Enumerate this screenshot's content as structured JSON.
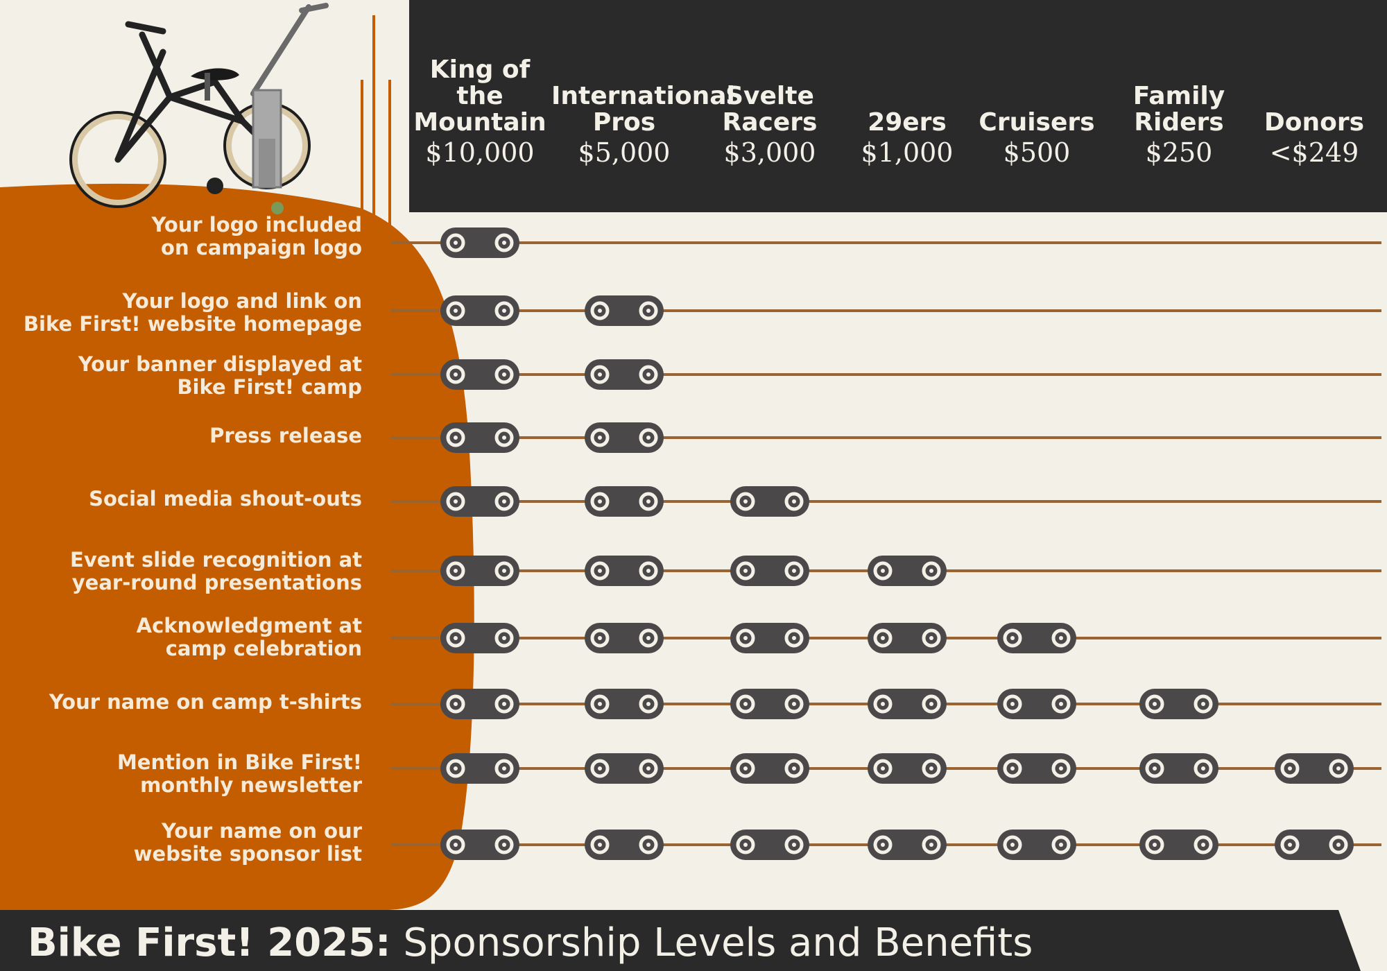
{
  "title": {
    "bold": "Bike First! 2025:",
    "rest": "Sponsorship Levels and Benefits"
  },
  "tiers": [
    {
      "name_lines": [
        "King of",
        "the",
        "Mountain"
      ],
      "price": "$10,000"
    },
    {
      "name_lines": [
        "International",
        "Pros"
      ],
      "price": "$5,000"
    },
    {
      "name_lines": [
        "Svelte",
        "Racers"
      ],
      "price": "$3,000"
    },
    {
      "name_lines": [
        "29ers"
      ],
      "price": "$1,000"
    },
    {
      "name_lines": [
        "Cruisers"
      ],
      "price": "$500"
    },
    {
      "name_lines": [
        "Family",
        "Riders"
      ],
      "price": "$250"
    },
    {
      "name_lines": [
        "Donors"
      ],
      "price": "<$249"
    }
  ],
  "benefits": [
    {
      "lines": [
        "Your logo included",
        "on campaign logo"
      ],
      "tiers_included": 1
    },
    {
      "lines": [
        "Your logo and link on",
        "Bike First! website homepage"
      ],
      "tiers_included": 2
    },
    {
      "lines": [
        "Your banner displayed at",
        "Bike First! camp"
      ],
      "tiers_included": 2
    },
    {
      "lines": [
        "Press release"
      ],
      "tiers_included": 2
    },
    {
      "lines": [
        "Social media shout-outs"
      ],
      "tiers_included": 3
    },
    {
      "lines": [
        "Event slide recognition at",
        "year-round presentations"
      ],
      "tiers_included": 4
    },
    {
      "lines": [
        "Acknowledgment at",
        "camp celebration"
      ],
      "tiers_included": 5
    },
    {
      "lines": [
        "Your name on camp t-shirts"
      ],
      "tiers_included": 6
    },
    {
      "lines": [
        "Mention in Bike First!",
        "monthly newsletter"
      ],
      "tiers_included": 7
    },
    {
      "lines": [
        "Your name on our",
        "website sponsor list"
      ],
      "tiers_included": 7
    }
  ],
  "colors": {
    "background": "#f3f0e8",
    "orange": "#c45d00",
    "dark": "#2b2a2b",
    "chain": "#4a4849",
    "rule": "#9a6332",
    "label_text": "#f6ead9"
  },
  "icons": {
    "check": "chain-link-icon",
    "illustration": "bicycle-icon"
  }
}
